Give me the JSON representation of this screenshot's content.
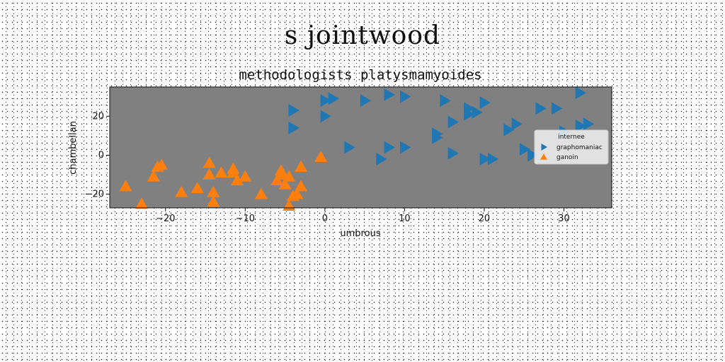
{
  "figure": {
    "suptitle": "s jointwood"
  },
  "chart_data": {
    "type": "scatter",
    "title": "methodologists platysmamyoides",
    "xlabel": "umbrous",
    "ylabel": "chambellan",
    "xlim": [
      -27,
      36
    ],
    "ylim": [
      -27,
      35
    ],
    "xticks": [
      -20,
      -10,
      0,
      10,
      20,
      30
    ],
    "yticks": [
      -20,
      0,
      20
    ],
    "xtick_labels": [
      "−20",
      "−10",
      "0",
      "10",
      "20",
      "30"
    ],
    "ytick_labels": [
      "−20",
      "0",
      "20"
    ],
    "grid": false,
    "legend": {
      "title": "internee",
      "placement": "right"
    },
    "plot_background": "#808080",
    "series": [
      {
        "name": "graphomaniac",
        "marker": "triangle-right",
        "color": "#1f77b4",
        "x": [
          -4,
          -4,
          0,
          1,
          5,
          8,
          10,
          15,
          18,
          20,
          0,
          14,
          16,
          18,
          19,
          23,
          24,
          27,
          29,
          32,
          3,
          8,
          10,
          14,
          16,
          7,
          20,
          21,
          25,
          26,
          30,
          32,
          33
        ],
        "y": [
          23,
          14,
          28,
          29,
          28,
          31,
          30,
          28,
          24,
          27,
          20,
          11,
          17,
          21,
          22,
          13,
          16,
          24,
          24,
          32,
          4,
          4,
          4,
          9,
          1,
          -2,
          -2,
          -2,
          3,
          0,
          12,
          15,
          16
        ]
      },
      {
        "name": "ganoin",
        "marker": "triangle-up",
        "color": "#ff7f0e",
        "x": [
          -25,
          -23,
          -21,
          -20.5,
          -18,
          -16,
          -14.5,
          -14,
          -13,
          -11.5,
          -11,
          -10,
          -8,
          -6,
          -5.5,
          -5,
          -4.5,
          -3.5,
          -3,
          -4.5,
          -4,
          -3,
          -0.5,
          -21.5,
          -14.5,
          -11.5,
          -5.5,
          -14
        ],
        "y": [
          -16,
          -25,
          -6,
          -5,
          -19,
          -17,
          -10,
          -24,
          -9,
          -9,
          -13,
          -11,
          -20,
          -13,
          -10,
          -15,
          -11,
          -20,
          -6,
          -26,
          -21,
          -16,
          -1,
          -11,
          -4,
          -7,
          -8,
          -19
        ]
      }
    ]
  }
}
